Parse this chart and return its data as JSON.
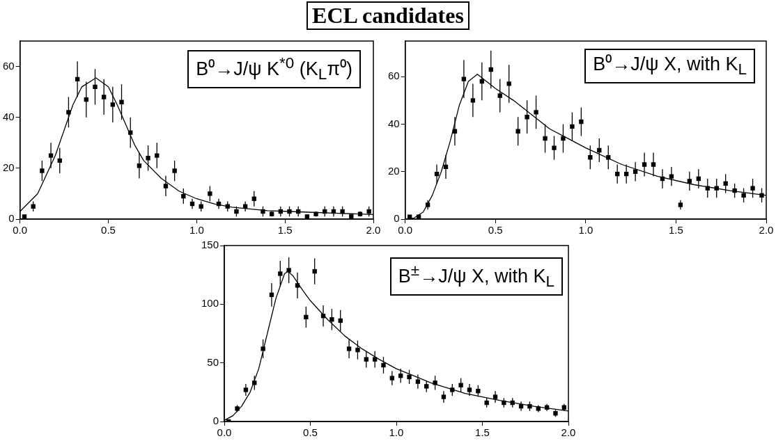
{
  "chart_data": [
    {
      "type": "scatter",
      "title": "B⁰→J/ψ K$^{*0}$ (K$_{L}$π⁰)",
      "annotations": [
        "ECL candidates"
      ],
      "grid": false,
      "x": [
        0.025,
        0.075,
        0.125,
        0.175,
        0.225,
        0.275,
        0.325,
        0.375,
        0.425,
        0.475,
        0.525,
        0.575,
        0.625,
        0.675,
        0.725,
        0.775,
        0.825,
        0.875,
        0.925,
        0.975,
        1.025,
        1.075,
        1.125,
        1.175,
        1.225,
        1.275,
        1.325,
        1.375,
        1.425,
        1.475,
        1.525,
        1.575,
        1.625,
        1.675,
        1.725,
        1.775,
        1.825,
        1.875,
        1.925,
        1.975
      ],
      "xlim": [
        0,
        2
      ],
      "xticks": [
        {
          "value": 0,
          "label": "0.0"
        },
        {
          "value": 0.5,
          "label": "0.5"
        },
        {
          "value": 1,
          "label": "1.0"
        },
        {
          "value": 1.5,
          "label": "1.5"
        },
        {
          "value": 2,
          "label": "2.0"
        }
      ],
      "ylim": [
        0,
        70
      ],
      "yticks": [
        0,
        20,
        40,
        60
      ],
      "series": [
        {
          "color": "#000000",
          "marker": "square",
          "values": [
            1,
            5,
            19,
            25,
            23,
            42,
            55,
            47,
            52,
            48,
            45,
            46,
            34,
            21,
            24,
            25,
            13,
            19,
            9,
            6,
            5,
            10,
            6,
            5,
            3,
            5,
            8,
            3,
            2,
            3,
            3,
            3,
            1,
            2,
            3,
            3,
            3,
            1,
            2,
            3
          ],
          "errors": [
            null,
            2,
            4,
            5,
            5,
            6,
            7,
            7,
            7,
            7,
            7,
            7,
            6,
            5,
            5,
            5,
            4,
            4,
            3,
            2,
            2,
            3,
            2,
            2,
            2,
            2,
            3,
            2,
            1,
            2,
            2,
            2,
            null,
            1,
            2,
            2,
            2,
            null,
            1,
            2
          ]
        },
        {
          "type": "line",
          "color": "#000000",
          "x": [
            0,
            0.1,
            0.2,
            0.3,
            0.35,
            0.43,
            0.5,
            0.55,
            0.6,
            0.65,
            0.7,
            0.8,
            0.9,
            1.0,
            1.1,
            1.2,
            1.3,
            1.4,
            1.6,
            1.8,
            2.0
          ],
          "values": [
            3,
            10,
            25,
            45,
            52,
            55.5,
            52,
            45,
            37,
            29,
            23,
            16,
            11,
            8,
            6,
            4.7,
            4,
            3.3,
            2.8,
            2.3,
            1.8
          ]
        }
      ]
    },
    {
      "type": "scatter",
      "title": "B⁰→J/ψ X, with K$_{L}$",
      "grid": false,
      "x": [
        0.025,
        0.075,
        0.125,
        0.175,
        0.225,
        0.275,
        0.325,
        0.375,
        0.425,
        0.475,
        0.525,
        0.575,
        0.625,
        0.675,
        0.725,
        0.775,
        0.825,
        0.875,
        0.925,
        0.975,
        1.025,
        1.075,
        1.125,
        1.175,
        1.225,
        1.275,
        1.325,
        1.375,
        1.425,
        1.475,
        1.525,
        1.575,
        1.625,
        1.675,
        1.725,
        1.775,
        1.825,
        1.875,
        1.925,
        1.975
      ],
      "xlim": [
        0,
        2
      ],
      "xticks": [
        {
          "value": 0,
          "label": "0.0"
        },
        {
          "value": 0.5,
          "label": "0.5"
        },
        {
          "value": 1,
          "label": "1.0"
        },
        {
          "value": 1.5,
          "label": "1.5"
        },
        {
          "value": 2,
          "label": "2.0"
        }
      ],
      "ylim": [
        0,
        75
      ],
      "yticks": [
        0,
        20,
        40,
        60
      ],
      "series": [
        {
          "color": "#000000",
          "marker": "square",
          "values": [
            1,
            1,
            6,
            19,
            22,
            37,
            59,
            50,
            58,
            63,
            52,
            57,
            37,
            43,
            45,
            34,
            30,
            34,
            39,
            41,
            26,
            29,
            26,
            19,
            19,
            20,
            23,
            23,
            17,
            18,
            6,
            16,
            17,
            13,
            13,
            15,
            12,
            10,
            13,
            10
          ],
          "errors": [
            null,
            null,
            2,
            4,
            5,
            6,
            8,
            7,
            8,
            8,
            7,
            8,
            6,
            7,
            7,
            6,
            5,
            6,
            6,
            6,
            5,
            5,
            5,
            4,
            4,
            4,
            5,
            5,
            4,
            4,
            2,
            4,
            4,
            4,
            4,
            4,
            3,
            3,
            4,
            3
          ]
        },
        {
          "type": "line",
          "color": "#000000",
          "x": [
            0,
            0.05,
            0.1,
            0.15,
            0.2,
            0.25,
            0.3,
            0.35,
            0.4,
            0.45,
            0.5,
            0.6,
            0.7,
            0.8,
            0.9,
            1.0,
            1.2,
            1.4,
            1.6,
            1.8,
            2.0
          ],
          "values": [
            0,
            0.5,
            3,
            10,
            20,
            33,
            48,
            58,
            61,
            58,
            55,
            50,
            44,
            38,
            34,
            30,
            23,
            18,
            14.5,
            12,
            10
          ]
        }
      ]
    },
    {
      "type": "scatter",
      "title": "B$^{±}$→J/ψ X, with K$_{L}$",
      "grid": false,
      "x": [
        0.025,
        0.075,
        0.125,
        0.175,
        0.225,
        0.275,
        0.325,
        0.375,
        0.425,
        0.475,
        0.525,
        0.575,
        0.625,
        0.675,
        0.725,
        0.775,
        0.825,
        0.875,
        0.925,
        0.975,
        1.025,
        1.075,
        1.125,
        1.175,
        1.225,
        1.275,
        1.325,
        1.375,
        1.425,
        1.475,
        1.525,
        1.575,
        1.625,
        1.675,
        1.725,
        1.775,
        1.825,
        1.875,
        1.925,
        1.975
      ],
      "xlim": [
        0,
        2
      ],
      "xticks": [
        {
          "value": 0,
          "label": "0.0"
        },
        {
          "value": 0.5,
          "label": "0.5"
        },
        {
          "value": 1,
          "label": "1.0"
        },
        {
          "value": 1.5,
          "label": "1.5"
        },
        {
          "value": 2,
          "label": "2.0"
        }
      ],
      "ylim": [
        0,
        150
      ],
      "yticks": [
        0,
        50,
        100,
        150
      ],
      "series": [
        {
          "color": "#000000",
          "marker": "square",
          "values": [
            0,
            11,
            27,
            33,
            62,
            108,
            126,
            129,
            116,
            89,
            128,
            90,
            87,
            86,
            62,
            61,
            53,
            53,
            48,
            37,
            39,
            38,
            34,
            30,
            33,
            21,
            27,
            31,
            27,
            26,
            16,
            21,
            16,
            16,
            13,
            13,
            11,
            12,
            7,
            12
          ],
          "errors": [
            null,
            3,
            5,
            6,
            8,
            10,
            11,
            11,
            11,
            9,
            11,
            9,
            9,
            9,
            8,
            8,
            7,
            7,
            7,
            6,
            6,
            6,
            6,
            5,
            6,
            5,
            5,
            6,
            5,
            5,
            4,
            5,
            4,
            4,
            4,
            4,
            3,
            3,
            3,
            3
          ]
        },
        {
          "type": "line",
          "color": "#000000",
          "x": [
            0,
            0.05,
            0.1,
            0.15,
            0.2,
            0.25,
            0.3,
            0.35,
            0.37,
            0.4,
            0.45,
            0.5,
            0.6,
            0.7,
            0.8,
            0.9,
            1.0,
            1.1,
            1.2,
            1.4,
            1.6,
            1.8,
            2.0
          ],
          "values": [
            1,
            5,
            13,
            25,
            45,
            75,
            105,
            126,
            128,
            124,
            113,
            103,
            87,
            73,
            62,
            53,
            45,
            39,
            33,
            24,
            18,
            13,
            9
          ]
        }
      ]
    }
  ]
}
